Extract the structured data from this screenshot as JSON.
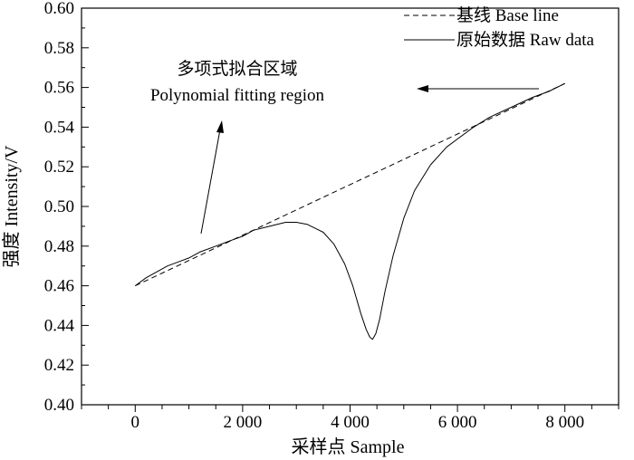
{
  "chart_data": {
    "type": "line",
    "xlabel": "采样点 Sample",
    "ylabel": "强度 Intensity/V",
    "xlim": [
      -1000,
      9000
    ],
    "ylim": [
      0.4,
      0.6
    ],
    "x_ticks": [
      0,
      2000,
      4000,
      6000,
      8000
    ],
    "x_tick_labels": [
      "0",
      "2 000",
      "4 000",
      "6 000",
      "8 000"
    ],
    "y_ticks": [
      0.4,
      0.42,
      0.44,
      0.46,
      0.48,
      0.5,
      0.52,
      0.54,
      0.56,
      0.58,
      0.6
    ],
    "y_tick_labels": [
      "0.40",
      "0.42",
      "0.44",
      "0.46",
      "0.48",
      "0.50",
      "0.52",
      "0.54",
      "0.56",
      "0.58",
      "0.60"
    ],
    "legend_position": "top-right",
    "grid": false,
    "series": [
      {
        "name": "基线 Base line",
        "style": "dashed",
        "color": "#000000",
        "x": [
          0,
          8000
        ],
        "y": [
          0.46,
          0.562
        ]
      },
      {
        "name": "原始数据 Raw data",
        "style": "solid",
        "color": "#000000",
        "x": [
          0,
          200,
          400,
          600,
          800,
          1000,
          1200,
          1500,
          1800,
          2000,
          2200,
          2500,
          2800,
          3000,
          3200,
          3500,
          3700,
          3900,
          4050,
          4200,
          4300,
          4370,
          4420,
          4480,
          4550,
          4650,
          4800,
          5000,
          5200,
          5500,
          5800,
          6000,
          6300,
          6600,
          7000,
          7400,
          7700,
          8000
        ],
        "y": [
          0.46,
          0.464,
          0.467,
          0.47,
          0.472,
          0.474,
          0.477,
          0.48,
          0.483,
          0.485,
          0.488,
          0.49,
          0.492,
          0.492,
          0.491,
          0.487,
          0.481,
          0.471,
          0.46,
          0.446,
          0.438,
          0.434,
          0.433,
          0.436,
          0.443,
          0.457,
          0.475,
          0.494,
          0.508,
          0.521,
          0.53,
          0.534,
          0.54,
          0.545,
          0.55,
          0.555,
          0.558,
          0.562
        ]
      }
    ],
    "annotations": [
      {
        "text_cn": "多项式拟合区域",
        "text_en": "Polynomial fitting region"
      }
    ]
  }
}
